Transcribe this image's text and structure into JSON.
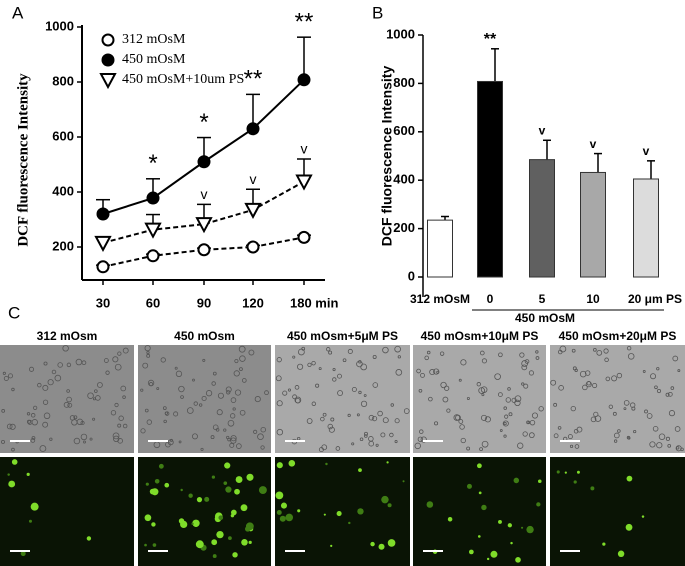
{
  "panel_labels": [
    "A",
    "B",
    "C"
  ],
  "chart_data": [
    {
      "type": "line",
      "x_label_note": null,
      "categories": [
        "30",
        "60",
        "90",
        "120",
        "180 min"
      ],
      "ylabel": "DCF fluorescence Intensity",
      "ylim": [
        80,
        1000
      ],
      "yticks": [
        200,
        400,
        600,
        800,
        1000
      ],
      "series": [
        {
          "name": "312 mOsM",
          "color": "#000000",
          "dash": true,
          "marker": "open-circle",
          "values": [
            128,
            168,
            190,
            200,
            235
          ],
          "errors": [
            6,
            6,
            6,
            6,
            8
          ],
          "annotations": [
            null,
            null,
            null,
            null,
            null
          ]
        },
        {
          "name": "450 mOsM",
          "color": "#000000",
          "dash": false,
          "marker": "circle",
          "values": [
            320,
            378,
            510,
            630,
            808
          ],
          "errors": [
            52,
            70,
            88,
            125,
            155
          ],
          "annotations": [
            null,
            "*",
            "*",
            "**",
            "**"
          ]
        },
        {
          "name": "450 mOsM+10um PS",
          "color": "#000000",
          "dash": true,
          "marker": "open-triangle",
          "values": [
            215,
            263,
            283,
            335,
            438
          ],
          "errors": [
            20,
            55,
            72,
            75,
            82
          ],
          "annotations": [
            null,
            null,
            "v",
            "v",
            "v"
          ]
        }
      ]
    },
    {
      "type": "bar",
      "categories": [
        "312 mOsM",
        "0",
        "5",
        "10",
        "20 μm PS"
      ],
      "group_label": "450 mOsM",
      "ylabel": "DCF fluorescence Intensity",
      "ylim": [
        0,
        1000
      ],
      "yticks": [
        0,
        200,
        400,
        600,
        800,
        1000
      ],
      "values": [
        235,
        808,
        485,
        432,
        405
      ],
      "errors": [
        15,
        135,
        80,
        78,
        75
      ],
      "colors": [
        "#ffffff",
        "#000000",
        "#606060",
        "#a8a8a8",
        "#dcdcdc"
      ],
      "annotations": [
        null,
        "**",
        "v",
        "v",
        "v"
      ]
    }
  ],
  "micrographs": {
    "columns": [
      "312 mOsm",
      "450 mOsm",
      "450 mOsm+5μM PS",
      "450 mOsm+10μM PS",
      "450 mOsm+20μM PS"
    ]
  }
}
